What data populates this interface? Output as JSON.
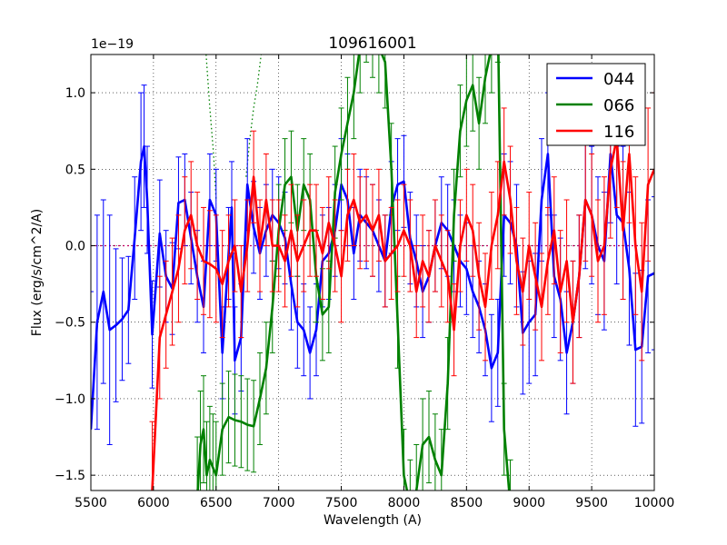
{
  "chart_data": {
    "type": "line",
    "title": "109616001",
    "xlabel": "Wavelength (A)",
    "ylabel": "Flux (erg/s/cm^2/A)",
    "y_multiplier": "1e−19",
    "xlim": [
      5500,
      10000
    ],
    "ylim": [
      -1.6,
      1.25
    ],
    "x_ticks": [
      5500,
      6000,
      6500,
      7000,
      7500,
      8000,
      8500,
      9000,
      9500,
      10000
    ],
    "y_ticks": [
      -1.5,
      -1.0,
      -0.5,
      0.0,
      0.5,
      1.0
    ],
    "y_tick_labels": [
      "−1.5",
      "−1.0",
      "−0.5",
      "0.0",
      "0.5",
      "1.0"
    ],
    "grid": true,
    "grid_style": "dotted",
    "legend_position": "top-right",
    "zero_line": {
      "y": 0.0,
      "color": "#bf0060"
    },
    "series": [
      {
        "name": "044",
        "color": "#0000ff",
        "x": [
          5500,
          5550,
          5600,
          5650,
          5700,
          5750,
          5800,
          5850,
          5900,
          5925,
          5950,
          5990,
          6050,
          6100,
          6150,
          6200,
          6250,
          6300,
          6350,
          6400,
          6450,
          6500,
          6550,
          6600,
          6625,
          6650,
          6700,
          6750,
          6800,
          6850,
          6900,
          6950,
          7000,
          7050,
          7100,
          7150,
          7200,
          7250,
          7300,
          7350,
          7400,
          7450,
          7500,
          7550,
          7600,
          7650,
          7700,
          7750,
          7800,
          7850,
          7900,
          7950,
          8000,
          8050,
          8100,
          8150,
          8200,
          8250,
          8300,
          8350,
          8400,
          8450,
          8500,
          8550,
          8600,
          8650,
          8700,
          8750,
          8800,
          8850,
          8900,
          8950,
          9000,
          9050,
          9100,
          9150,
          9200,
          9250,
          9300,
          9350,
          9400,
          9450,
          9500,
          9550,
          9600,
          9650,
          9700,
          9750,
          9800,
          9850,
          9900,
          9950,
          10000
        ],
        "values": [
          -1.2,
          -0.5,
          -0.3,
          -0.55,
          -0.52,
          -0.48,
          -0.42,
          0.05,
          0.55,
          0.65,
          0.3,
          -0.58,
          0.08,
          -0.2,
          -0.28,
          0.28,
          0.3,
          0.05,
          -0.2,
          -0.4,
          0.3,
          0.2,
          -0.7,
          -0.05,
          0.25,
          -0.75,
          -0.6,
          0.4,
          0.12,
          -0.05,
          0.1,
          0.2,
          0.15,
          0.05,
          -0.25,
          -0.5,
          -0.55,
          -0.7,
          -0.55,
          -0.1,
          -0.05,
          0.1,
          0.4,
          0.3,
          -0.05,
          0.2,
          0.15,
          0.1,
          0.0,
          -0.1,
          0.25,
          0.4,
          0.42,
          0.05,
          -0.1,
          -0.3,
          -0.2,
          0.0,
          0.15,
          0.1,
          0.0,
          -0.1,
          -0.15,
          -0.3,
          -0.4,
          -0.55,
          -0.8,
          -0.7,
          0.2,
          0.15,
          0.0,
          -0.57,
          -0.5,
          -0.45,
          0.3,
          0.6,
          -0.2,
          -0.35,
          -0.7,
          -0.5,
          -0.2,
          0.3,
          0.2,
          0.0,
          -0.1,
          0.6,
          0.2,
          0.15,
          -0.15,
          -0.68,
          -0.66,
          -0.2,
          -0.18
        ],
        "errors": [
          0.9,
          0.7,
          0.6,
          0.75,
          0.5,
          0.4,
          0.35,
          0.4,
          0.45,
          0.4,
          0.35,
          0.35,
          0.35,
          0.3,
          0.3,
          0.3,
          0.3,
          0.3,
          0.3,
          0.3,
          0.3,
          0.3,
          0.3,
          0.3,
          0.3,
          0.35,
          0.35,
          0.3,
          0.3,
          0.3,
          0.3,
          0.3,
          0.3,
          0.3,
          0.3,
          0.3,
          0.3,
          0.3,
          0.3,
          0.3,
          0.3,
          0.3,
          0.3,
          0.3,
          0.3,
          0.3,
          0.3,
          0.3,
          0.3,
          0.3,
          0.3,
          0.3,
          0.3,
          0.3,
          0.3,
          0.3,
          0.3,
          0.3,
          0.3,
          0.3,
          0.3,
          0.3,
          0.3,
          0.3,
          0.3,
          0.3,
          0.35,
          0.35,
          0.4,
          0.4,
          0.4,
          0.4,
          0.4,
          0.4,
          0.4,
          0.4,
          0.4,
          0.4,
          0.4,
          0.4,
          0.4,
          0.45,
          0.45,
          0.45,
          0.45,
          0.45,
          0.45,
          0.5,
          0.5,
          0.5,
          0.5,
          0.5,
          0.5
        ]
      },
      {
        "name": "066",
        "color": "#008000",
        "x": [
          6350,
          6375,
          6400,
          6425,
          6450,
          6475,
          6500,
          6550,
          6600,
          6650,
          6700,
          6750,
          6800,
          6850,
          6900,
          6950,
          7000,
          7050,
          7100,
          7150,
          7200,
          7250,
          7300,
          7350,
          7400,
          7450,
          7500,
          7550,
          7600,
          7650,
          7700,
          7750,
          7800,
          7850,
          7900,
          7950,
          8000,
          8050,
          8100,
          8150,
          8200,
          8250,
          8300,
          8350,
          8400,
          8450,
          8500,
          8550,
          8600,
          8650,
          8700,
          8750,
          8800,
          8850
        ],
        "values": [
          -1.65,
          -1.3,
          -1.2,
          -1.5,
          -1.4,
          -1.45,
          -1.5,
          -1.2,
          -1.12,
          -1.14,
          -1.15,
          -1.17,
          -1.18,
          -1.0,
          -0.8,
          -0.4,
          0.1,
          0.4,
          0.45,
          0.1,
          0.4,
          0.3,
          -0.2,
          -0.45,
          -0.4,
          0.35,
          0.6,
          0.8,
          1.0,
          1.3,
          1.5,
          1.4,
          1.3,
          1.2,
          0.5,
          -0.5,
          -1.5,
          -1.7,
          -1.6,
          -1.3,
          -1.25,
          -1.4,
          -1.5,
          -0.9,
          0.2,
          0.75,
          0.95,
          1.05,
          0.8,
          1.1,
          1.3,
          1.5,
          -1.2,
          -1.7
        ],
        "errors": [
          0.4,
          0.35,
          0.35,
          0.35,
          0.35,
          0.35,
          0.35,
          0.3,
          0.3,
          0.3,
          0.3,
          0.3,
          0.3,
          0.3,
          0.3,
          0.3,
          0.3,
          0.3,
          0.3,
          0.3,
          0.3,
          0.3,
          0.3,
          0.3,
          0.3,
          0.3,
          0.3,
          0.3,
          0.3,
          0.3,
          0.3,
          0.3,
          0.3,
          0.3,
          0.3,
          0.3,
          0.3,
          0.3,
          0.3,
          0.3,
          0.3,
          0.3,
          0.3,
          0.3,
          0.3,
          0.3,
          0.3,
          0.3,
          0.3,
          0.3,
          0.3,
          0.3,
          0.3,
          0.3
        ]
      },
      {
        "name": "116",
        "color": "#ff0000",
        "x": [
          5990,
          6050,
          6100,
          6150,
          6200,
          6250,
          6300,
          6350,
          6400,
          6450,
          6500,
          6550,
          6600,
          6650,
          6700,
          6750,
          6800,
          6850,
          6900,
          6950,
          7000,
          7050,
          7100,
          7150,
          7200,
          7250,
          7300,
          7350,
          7400,
          7450,
          7500,
          7550,
          7600,
          7650,
          7700,
          7750,
          7800,
          7850,
          7900,
          7950,
          8000,
          8050,
          8100,
          8150,
          8200,
          8250,
          8300,
          8350,
          8400,
          8450,
          8500,
          8550,
          8600,
          8650,
          8700,
          8750,
          8800,
          8850,
          8900,
          8950,
          9000,
          9050,
          9100,
          9150,
          9200,
          9250,
          9300,
          9350,
          9400,
          9450,
          9500,
          9550,
          9600,
          9650,
          9700,
          9750,
          9800,
          9850,
          9900,
          9950,
          10000
        ],
        "values": [
          -1.6,
          -0.6,
          -0.45,
          -0.3,
          -0.15,
          0.1,
          0.2,
          0.0,
          -0.1,
          -0.12,
          -0.15,
          -0.25,
          -0.1,
          0.0,
          -0.3,
          0.0,
          0.45,
          0.0,
          0.3,
          0.0,
          0.0,
          -0.1,
          0.1,
          -0.1,
          0.0,
          0.1,
          0.1,
          -0.05,
          0.15,
          0.0,
          -0.2,
          0.2,
          0.3,
          0.15,
          0.2,
          0.1,
          0.2,
          -0.1,
          -0.05,
          0.0,
          0.1,
          0.0,
          -0.3,
          -0.1,
          -0.2,
          0.0,
          -0.1,
          -0.2,
          -0.55,
          0.0,
          0.2,
          0.1,
          -0.2,
          -0.4,
          0.0,
          0.2,
          0.55,
          0.3,
          -0.1,
          -0.3,
          0.0,
          -0.2,
          -0.4,
          -0.1,
          0.1,
          -0.3,
          -0.1,
          -0.5,
          -0.2,
          0.3,
          0.2,
          -0.1,
          0.0,
          0.5,
          0.7,
          0.1,
          0.6,
          0.0,
          -0.3,
          0.4,
          0.5
        ],
        "errors": [
          0.45,
          0.4,
          0.35,
          0.35,
          0.35,
          0.35,
          0.35,
          0.35,
          0.35,
          0.35,
          0.35,
          0.35,
          0.3,
          0.3,
          0.3,
          0.3,
          0.3,
          0.3,
          0.3,
          0.3,
          0.3,
          0.3,
          0.3,
          0.3,
          0.3,
          0.3,
          0.3,
          0.3,
          0.3,
          0.3,
          0.3,
          0.3,
          0.3,
          0.3,
          0.3,
          0.3,
          0.3,
          0.3,
          0.3,
          0.3,
          0.3,
          0.3,
          0.3,
          0.3,
          0.3,
          0.3,
          0.3,
          0.3,
          0.3,
          0.3,
          0.3,
          0.3,
          0.35,
          0.35,
          0.35,
          0.35,
          0.35,
          0.35,
          0.35,
          0.35,
          0.35,
          0.35,
          0.35,
          0.35,
          0.35,
          0.4,
          0.4,
          0.4,
          0.4,
          0.4,
          0.4,
          0.4,
          0.45,
          0.45,
          0.45,
          0.45,
          0.45,
          0.45,
          0.45,
          0.5,
          0.5
        ]
      }
    ],
    "reference_curve": {
      "color": "#008000",
      "style": "dotted",
      "x": [
        6420,
        6450,
        6480,
        6500
      ],
      "values": [
        1.25,
        0.9,
        0.6,
        0.3
      ],
      "x2": [
        6740,
        6770,
        6800,
        6830,
        6860
      ],
      "values2": [
        0.45,
        0.7,
        0.9,
        1.05,
        1.25
      ]
    }
  }
}
